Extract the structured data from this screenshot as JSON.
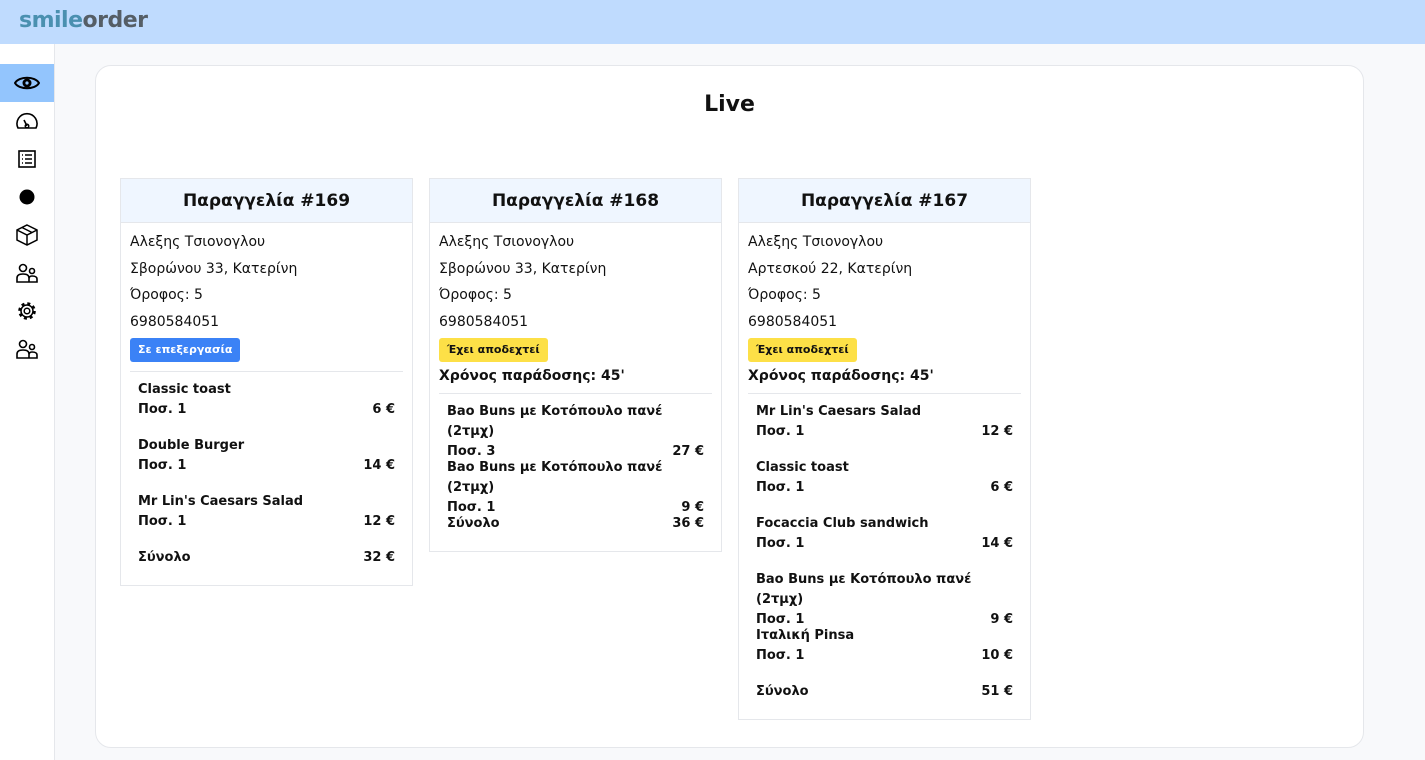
{
  "app": {
    "logo_part1": "smile",
    "logo_part2": "order"
  },
  "sidebar": {
    "items": [
      {
        "icon": "eye-icon",
        "active": true
      },
      {
        "icon": "speedometer-icon"
      },
      {
        "icon": "list-icon"
      },
      {
        "icon": "circle-icon"
      },
      {
        "icon": "box-icon"
      },
      {
        "icon": "users-icon"
      },
      {
        "icon": "gear-icon"
      },
      {
        "icon": "users-icon"
      }
    ]
  },
  "page": {
    "title": "Live"
  },
  "colors": {
    "processing": "#3b82f6",
    "accepted": "#fde047",
    "header": "#bfdbfe"
  },
  "orders": [
    {
      "title": "Παραγγελία #169",
      "name": "Αλεξης Τσιονογλου",
      "address": "Σβορώνου 33, Κατερίνη",
      "floor": "Όροφος: 5",
      "phone": "6980584051",
      "status": "Σε επεξεργασία",
      "status_type": "blue",
      "delivery": "",
      "items": [
        {
          "name": "Classic toast",
          "qty": "Ποσ. 1",
          "price": "6 €"
        },
        {
          "name": "Double Burger",
          "qty": "Ποσ. 1",
          "price": "14 €"
        },
        {
          "name": "Mr Lin's Caesars Salad",
          "qty": "Ποσ. 1",
          "price": "12 €"
        }
      ],
      "total_label": "Σύνολο",
      "total": "32 €"
    },
    {
      "title": "Παραγγελία #168",
      "name": "Αλεξης Τσιονογλου",
      "address": "Σβορώνου 33, Κατερίνη",
      "floor": "Όροφος: 5",
      "phone": "6980584051",
      "status": "Έχει αποδεχτεί",
      "status_type": "yellow",
      "delivery": "Χρόνος παράδοσης: 45'",
      "items": [
        {
          "name": "Bao Buns με Κοτόπουλο πανέ (2τμχ)",
          "qty": "Ποσ. 3",
          "price": "27 €"
        },
        {
          "name": "Bao Buns με Κοτόπουλο πανέ (2τμχ)",
          "qty": "Ποσ. 1",
          "price": "9 €"
        }
      ],
      "total_label": "Σύνολο",
      "total": "36 €"
    },
    {
      "title": "Παραγγελία #167",
      "name": "Αλεξης Τσιονογλου",
      "address": "Αρτεσκού 22, Κατερίνη",
      "floor": "Όροφος: 5",
      "phone": "6980584051",
      "status": "Έχει αποδεχτεί",
      "status_type": "yellow",
      "delivery": "Χρόνος παράδοσης: 45'",
      "items": [
        {
          "name": "Mr Lin's Caesars Salad",
          "qty": "Ποσ. 1",
          "price": "12 €"
        },
        {
          "name": "Classic toast",
          "qty": "Ποσ. 1",
          "price": "6 €"
        },
        {
          "name": "Focaccia Club sandwich",
          "qty": "Ποσ. 1",
          "price": "14 €"
        },
        {
          "name": "Bao Buns με Κοτόπουλο πανέ (2τμχ)",
          "qty": "Ποσ. 1",
          "price": "9 €"
        },
        {
          "name": "Ιταλική Pinsa",
          "qty": "Ποσ. 1",
          "price": "10 €"
        }
      ],
      "total_label": "Σύνολο",
      "total": "51 €"
    }
  ]
}
